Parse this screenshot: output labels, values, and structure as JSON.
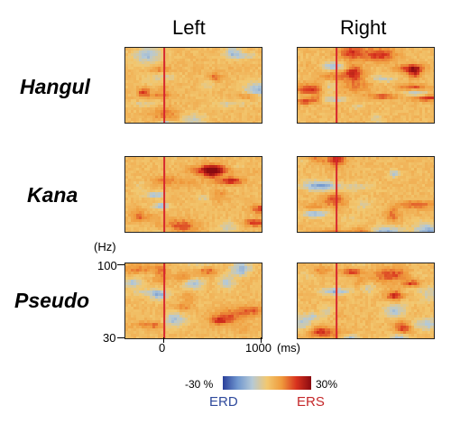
{
  "chart_data": {
    "type": "heatmap",
    "columns": [
      "Left",
      "Right"
    ],
    "rows": [
      "Hangul",
      "Kana",
      "Pseudo"
    ],
    "y_unit": "(Hz)",
    "y_ticks": [
      "100",
      "30"
    ],
    "ylim": [
      30,
      100
    ],
    "x_unit": "(ms)",
    "x_ticks": [
      "0",
      "1000"
    ],
    "xlim": [
      -400,
      1000
    ],
    "event_marker_ms": 0,
    "colorbar": {
      "min_label": "-30 %",
      "max_label": "30%",
      "min_value": -30,
      "max_value": 30,
      "low_name": "ERD",
      "high_name": "ERS",
      "colors": [
        "#2a3f9a",
        "#6f96cf",
        "#b5c9d6",
        "#f2c870",
        "#ef9a3c",
        "#d8321e",
        "#8a0a10"
      ]
    },
    "marker_color": "#d7262d",
    "panels": [
      {
        "row": "Hangul",
        "column": "Left",
        "seed": 11
      },
      {
        "row": "Hangul",
        "column": "Right",
        "seed": 23
      },
      {
        "row": "Kana",
        "column": "Left",
        "seed": 37
      },
      {
        "row": "Kana",
        "column": "Right",
        "seed": 41
      },
      {
        "row": "Pseudo",
        "column": "Left",
        "seed": 53
      },
      {
        "row": "Pseudo",
        "column": "Right",
        "seed": 67
      }
    ]
  }
}
